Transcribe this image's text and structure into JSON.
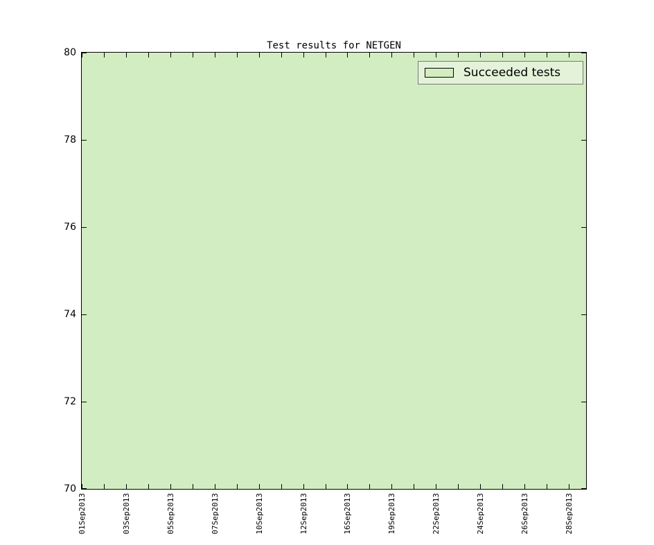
{
  "figure": {
    "background": "#ffffff"
  },
  "legend": {
    "label": "Succeeded tests",
    "position": "upper right"
  },
  "colors": {
    "area_fill": "#d3edc3",
    "area_edge": "#000000",
    "legend_bg": "#e3f2d9",
    "legend_border": "#787878",
    "axes_border": "#000000",
    "text": "#000000"
  },
  "chart_data": {
    "type": "area",
    "title": "Test results for NETGEN",
    "xlabel": "",
    "ylabel": "",
    "x_tick_labels": [
      "01Sep2013",
      "03Sep2013",
      "05Sep2013",
      "07Sep2013",
      "10Sep2013",
      "12Sep2013",
      "16Sep2013",
      "19Sep2013",
      "22Sep2013",
      "24Sep2013",
      "26Sep2013",
      "28Sep2013"
    ],
    "series": [
      {
        "name": "Succeeded tests",
        "values": [
          80,
          80,
          80,
          80,
          80,
          80,
          80,
          80,
          80,
          80,
          80,
          80
        ]
      }
    ],
    "ylim": [
      70,
      80
    ],
    "yticks": [
      70,
      72,
      74,
      76,
      78,
      80
    ],
    "n_xticks": 23,
    "xlabel_every": 2,
    "grid": false,
    "legend_position": "upper right",
    "note": "Filled area covers the entire visible y-range: values are at or above 80, clipped by ylim 70-80"
  }
}
